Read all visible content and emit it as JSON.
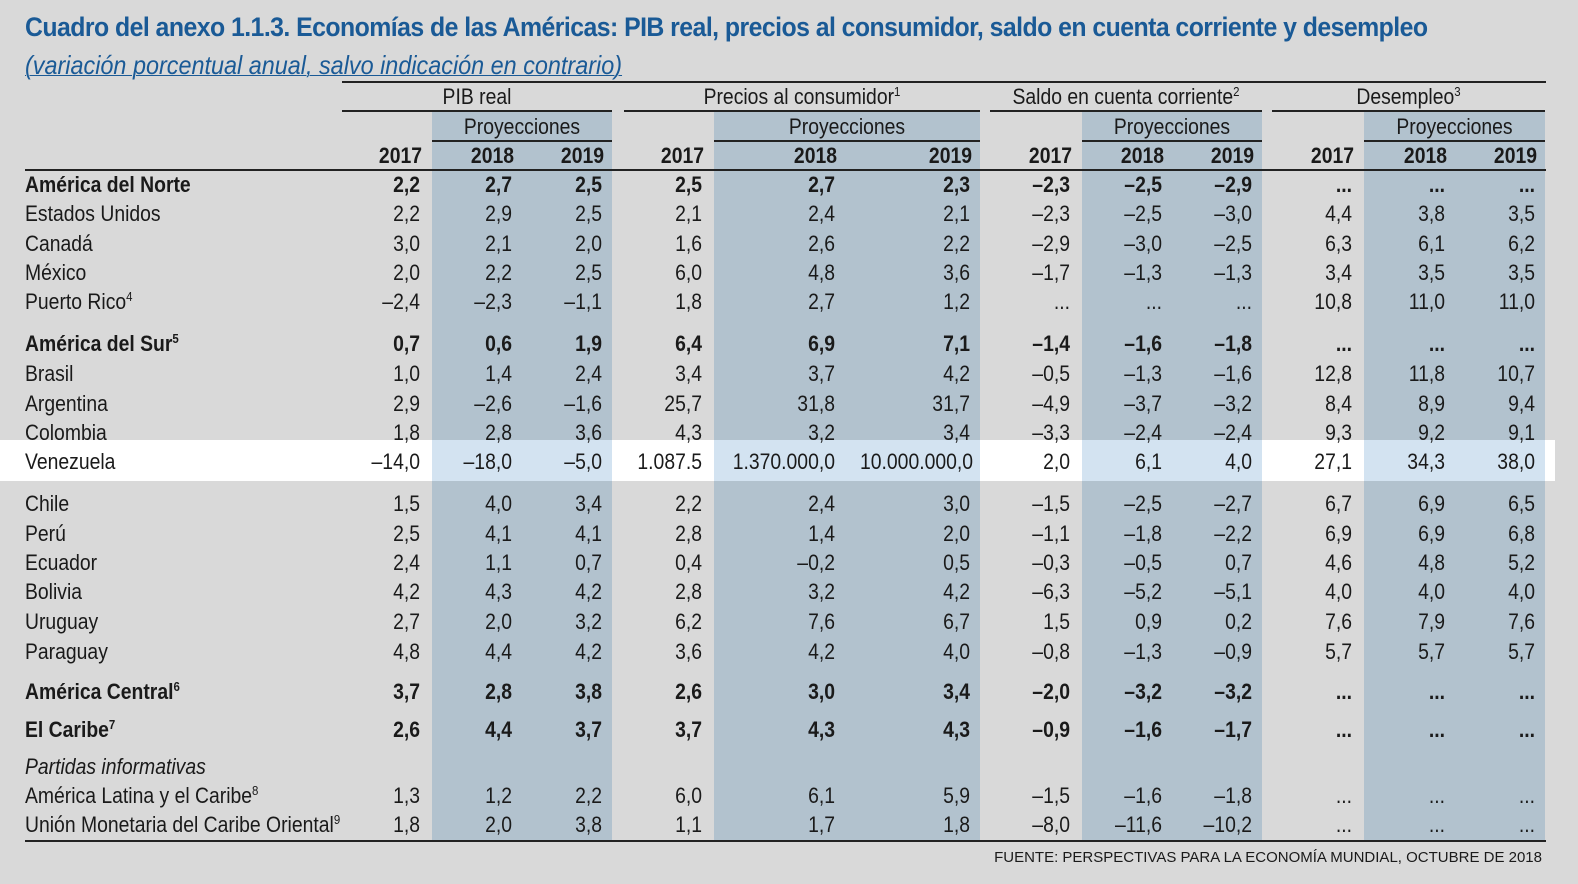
{
  "title": "Cuadro del anexo 1.1.3. Economías de las Américas: PIB real, precios al consumidor, saldo en cuenta corriente y desempleo",
  "subtitle": "(variación porcentual anual, salvo indicación en contrario)",
  "groups": [
    {
      "label": "PIB real",
      "sup": ""
    },
    {
      "label": "Precios al consumidor",
      "sup": "1"
    },
    {
      "label": "Saldo en cuenta corriente",
      "sup": "2"
    },
    {
      "label": "Desempleo",
      "sup": "3"
    }
  ],
  "projections_label": "Proyecciones",
  "years": [
    "2017",
    "2018",
    "2019"
  ],
  "rows": [
    {
      "label": "América del Norte",
      "sup": "",
      "bold": true,
      "values": [
        "2,2",
        "2,7",
        "2,5",
        "2,5",
        "2,7",
        "2,3",
        "–2,3",
        "–2,5",
        "–2,9",
        "...",
        "...",
        "..."
      ]
    },
    {
      "label": "Estados Unidos",
      "sup": "",
      "values": [
        "2,2",
        "2,9",
        "2,5",
        "2,1",
        "2,4",
        "2,1",
        "–2,3",
        "–2,5",
        "–3,0",
        "4,4",
        "3,8",
        "3,5"
      ]
    },
    {
      "label": "Canadá",
      "sup": "",
      "values": [
        "3,0",
        "2,1",
        "2,0",
        "1,6",
        "2,6",
        "2,2",
        "–2,9",
        "–3,0",
        "–2,5",
        "6,3",
        "6,1",
        "6,2"
      ]
    },
    {
      "label": "México",
      "sup": "",
      "values": [
        "2,0",
        "2,2",
        "2,5",
        "6,0",
        "4,8",
        "3,6",
        "–1,7",
        "–1,3",
        "–1,3",
        "3,4",
        "3,5",
        "3,5"
      ]
    },
    {
      "label": "Puerto Rico",
      "sup": "4",
      "values": [
        "–2,4",
        "–2,3",
        "–1,1",
        "1,8",
        "2,7",
        "1,2",
        "...",
        "...",
        "...",
        "10,8",
        "11,0",
        "11,0"
      ]
    },
    {
      "label": "América del Sur",
      "sup": "5",
      "bold": true,
      "values": [
        "0,7",
        "0,6",
        "1,9",
        "6,4",
        "6,9",
        "7,1",
        "–1,4",
        "–1,6",
        "–1,8",
        "...",
        "...",
        "..."
      ]
    },
    {
      "label": "Brasil",
      "sup": "",
      "values": [
        "1,0",
        "1,4",
        "2,4",
        "3,4",
        "3,7",
        "4,2",
        "–0,5",
        "–1,3",
        "–1,6",
        "12,8",
        "11,8",
        "10,7"
      ]
    },
    {
      "label": "Argentina",
      "sup": "",
      "values": [
        "2,9",
        "–2,6",
        "–1,6",
        "25,7",
        "31,8",
        "31,7",
        "–4,9",
        "–3,7",
        "–3,2",
        "8,4",
        "8,9",
        "9,4"
      ]
    },
    {
      "label": "Colombia",
      "sup": "",
      "values": [
        "1,8",
        "2,8",
        "3,6",
        "4,3",
        "3,2",
        "3,4",
        "–3,3",
        "–2,4",
        "–2,4",
        "9,3",
        "9,2",
        "9,1"
      ]
    },
    {
      "label": "Venezuela",
      "sup": "",
      "highlight": true,
      "values": [
        "–14,0",
        "–18,0",
        "–5,0",
        "1.087.5",
        "1.370.000,0",
        "10.000.000,0",
        "2,0",
        "6,1",
        "4,0",
        "27,1",
        "34,3",
        "38,0"
      ]
    },
    {
      "label": "Chile",
      "sup": "",
      "values": [
        "1,5",
        "4,0",
        "3,4",
        "2,2",
        "2,4",
        "3,0",
        "–1,5",
        "–2,5",
        "–2,7",
        "6,7",
        "6,9",
        "6,5"
      ]
    },
    {
      "label": "Perú",
      "sup": "",
      "values": [
        "2,5",
        "4,1",
        "4,1",
        "2,8",
        "1,4",
        "2,0",
        "–1,1",
        "–1,8",
        "–2,2",
        "6,9",
        "6,9",
        "6,8"
      ]
    },
    {
      "label": "Ecuador",
      "sup": "",
      "values": [
        "2,4",
        "1,1",
        "0,7",
        "0,4",
        "–0,2",
        "0,5",
        "–0,3",
        "–0,5",
        "0,7",
        "4,6",
        "4,8",
        "5,2"
      ]
    },
    {
      "label": "Bolivia",
      "sup": "",
      "values": [
        "4,2",
        "4,3",
        "4,2",
        "2,8",
        "3,2",
        "4,2",
        "–6,3",
        "–5,2",
        "–5,1",
        "4,0",
        "4,0",
        "4,0"
      ]
    },
    {
      "label": "Uruguay",
      "sup": "",
      "values": [
        "2,7",
        "2,0",
        "3,2",
        "6,2",
        "7,6",
        "6,7",
        "1,5",
        "0,9",
        "0,2",
        "7,6",
        "7,9",
        "7,6"
      ]
    },
    {
      "label": "Paraguay",
      "sup": "",
      "values": [
        "4,8",
        "4,4",
        "4,2",
        "3,6",
        "4,2",
        "4,0",
        "–0,8",
        "–1,3",
        "–0,9",
        "5,7",
        "5,7",
        "5,7"
      ]
    },
    {
      "label": "América Central",
      "sup": "6",
      "bold": true,
      "values": [
        "3,7",
        "2,8",
        "3,8",
        "2,6",
        "3,0",
        "3,4",
        "–2,0",
        "–3,2",
        "–3,2",
        "...",
        "...",
        "..."
      ]
    },
    {
      "label": "El Caribe",
      "sup": "7",
      "bold": true,
      "values": [
        "2,6",
        "4,4",
        "3,7",
        "3,7",
        "4,3",
        "4,3",
        "–0,9",
        "–1,6",
        "–1,7",
        "...",
        "...",
        "..."
      ]
    },
    {
      "label": "Partidas informativas",
      "sup": "",
      "italic": true,
      "values": []
    },
    {
      "label": "América Latina y el Caribe",
      "sup": "8",
      "values": [
        "1,3",
        "1,2",
        "2,2",
        "6,0",
        "6,1",
        "5,9",
        "–1,5",
        "–1,6",
        "–1,8",
        "...",
        "...",
        "..."
      ]
    },
    {
      "label": "Unión Monetaria del Caribe Oriental",
      "sup": "9",
      "values": [
        "1,8",
        "2,0",
        "3,8",
        "1,1",
        "1,7",
        "1,8",
        "–8,0",
        "–11,6",
        "–10,2",
        "...",
        "...",
        "..."
      ]
    }
  ],
  "source": "FUENTE: PERSPECTIVAS PARA LA ECONOMÍA MUNDIAL, OCTUBRE DE 2018",
  "colors": {
    "title": "#1a5a96",
    "background": "#d9d9d9",
    "projection_shade": "#b2c2ce",
    "highlight_row": "#ffffff",
    "highlight_shade": "#d3e3f1"
  }
}
